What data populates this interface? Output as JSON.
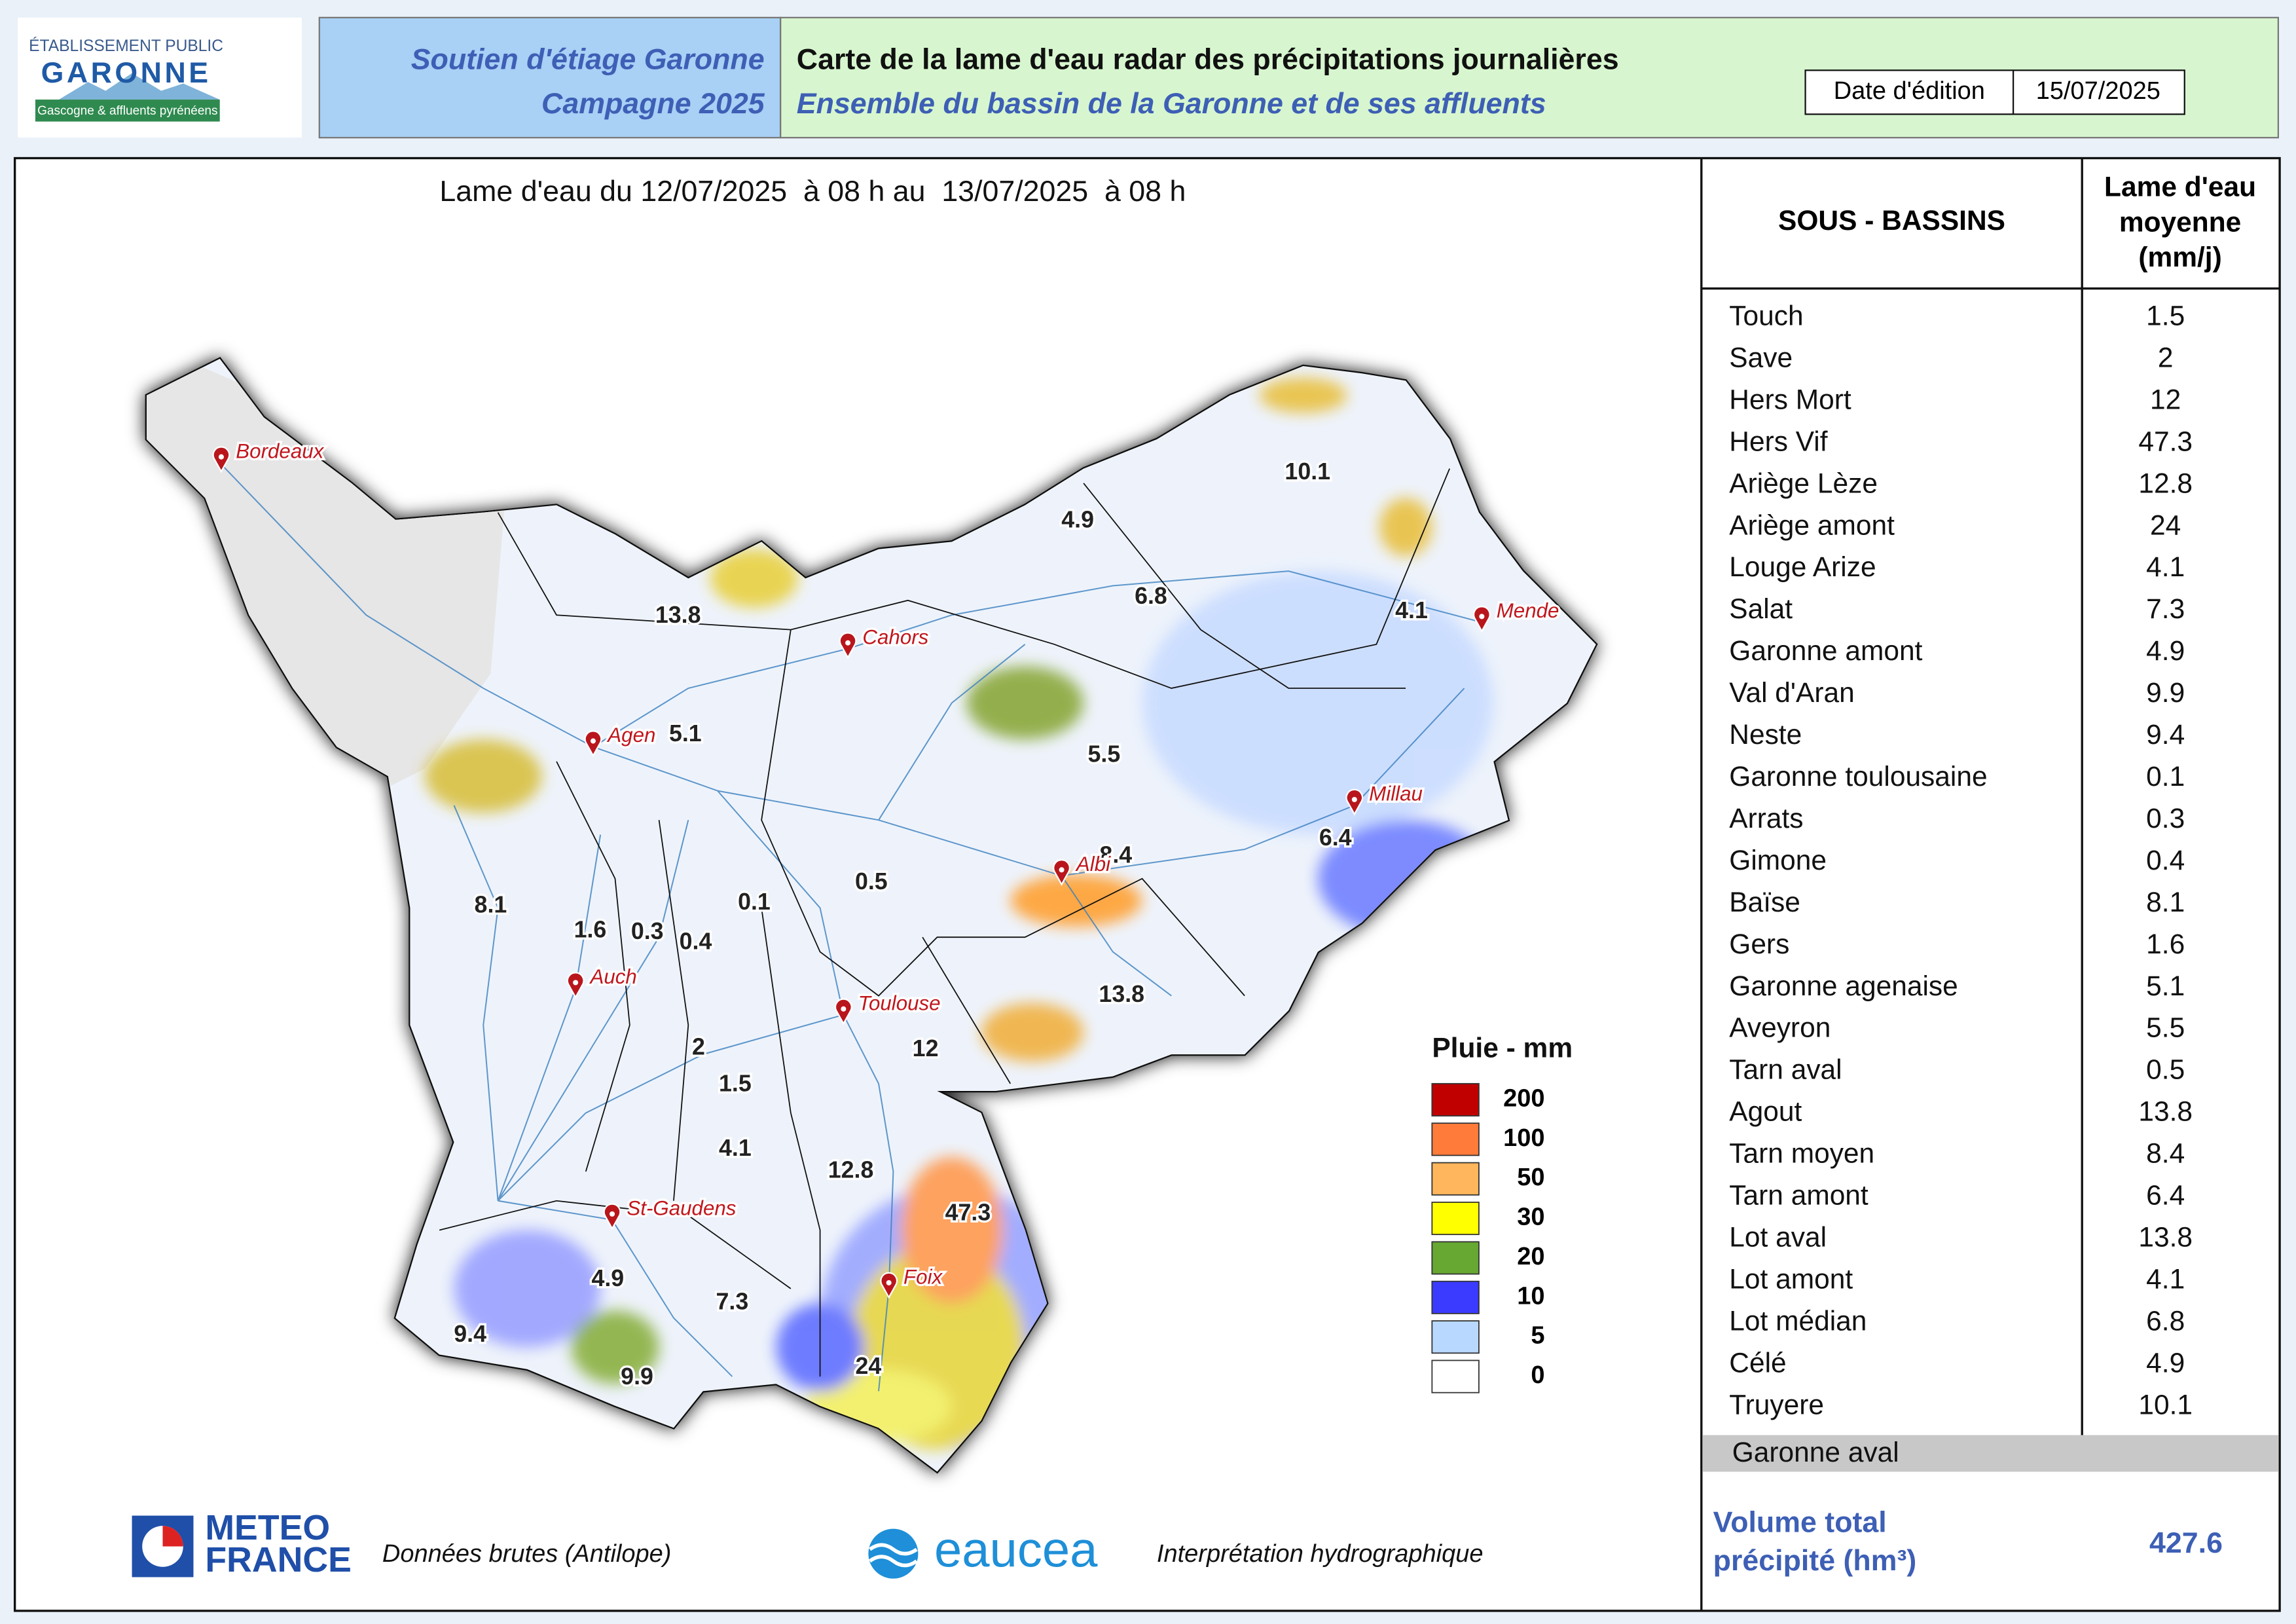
{
  "header": {
    "logo": {
      "line1": "ÉTABLISSEMENT PUBLIC",
      "line2": "GARONNE",
      "line3": "Gascogne & affluents pyrénéens"
    },
    "campaign": {
      "line1": "Soutien d'étiage Garonne",
      "line2": "Campagne 2025"
    },
    "title": "Carte de la lame d'eau radar des précipitations journalières",
    "subtitle": "Ensemble du bassin de la Garonne et de ses affluents",
    "date_label": "Date d'édition",
    "date": "15/07/2025"
  },
  "map": {
    "title": "Lame d'eau du 12/07/2025  à 08 h au  13/07/2025  à 08 h",
    "cities": [
      "Bordeaux",
      "Cahors",
      "Agen",
      "Mende",
      "Millau",
      "Albi",
      "Auch",
      "Toulouse",
      "St-Gaudens",
      "Foix"
    ],
    "basin_labels": [
      13.8,
      5.1,
      4.9,
      6.8,
      10.1,
      4.1,
      5.5,
      8.4,
      6.4,
      0.5,
      0.1,
      8.1,
      1.6,
      0.3,
      0.4,
      13.8,
      12,
      2,
      1.5,
      4.1,
      12.8,
      47.3,
      4.9,
      7.3,
      9.4,
      9.9,
      24
    ],
    "legend": {
      "title": "Pluie - mm",
      "items": [
        {
          "value": 200,
          "color": "#c00000"
        },
        {
          "value": 100,
          "color": "#ff7b3a"
        },
        {
          "value": 50,
          "color": "#ffb65c"
        },
        {
          "value": 30,
          "color": "#ffff00"
        },
        {
          "value": 20,
          "color": "#66a832"
        },
        {
          "value": 10,
          "color": "#3b3bff"
        },
        {
          "value": 5,
          "color": "#b9d8ff"
        },
        {
          "value": 0,
          "color": "#ffffff"
        }
      ]
    }
  },
  "table": {
    "header_name": "SOUS - BASSINS",
    "header_value": [
      "Lame d'eau",
      "moyenne",
      "(mm/j)"
    ],
    "rows": [
      [
        "Touch",
        1.5
      ],
      [
        "Save",
        2
      ],
      [
        "Hers Mort",
        12
      ],
      [
        "Hers Vif",
        47.3
      ],
      [
        "Ariège Lèze",
        12.8
      ],
      [
        "Ariège amont",
        24
      ],
      [
        "Louge Arize",
        4.1
      ],
      [
        "Salat",
        7.3
      ],
      [
        "Garonne amont",
        4.9
      ],
      [
        "Val d'Aran",
        9.9
      ],
      [
        "Neste",
        9.4
      ],
      [
        "Garonne toulousaine",
        0.1
      ],
      [
        "Arrats",
        0.3
      ],
      [
        "Gimone",
        0.4
      ],
      [
        "Baïse",
        8.1
      ],
      [
        "Gers",
        1.6
      ],
      [
        "Garonne agenaise",
        5.1
      ],
      [
        "Aveyron",
        5.5
      ],
      [
        "Tarn aval",
        0.5
      ],
      [
        "Agout",
        13.8
      ],
      [
        "Tarn moyen",
        8.4
      ],
      [
        "Tarn amont",
        6.4
      ],
      [
        "Lot aval",
        13.8
      ],
      [
        "Lot amont",
        4.1
      ],
      [
        "Lot médian",
        6.8
      ],
      [
        "Célé",
        4.9
      ],
      [
        "Truyere",
        10.1
      ]
    ],
    "footer_row": "Garonne aval",
    "total": {
      "label": [
        "Volume total",
        "précipité (hm³)"
      ],
      "value": 427.6
    }
  },
  "footer": {
    "meteo_logo": [
      "METEO",
      "FRANCE"
    ],
    "meteo_text": "Données brutes (Antilope)",
    "eaucea_logo": "eaucea",
    "eaucea_text": "Interprétation hydrographique"
  }
}
